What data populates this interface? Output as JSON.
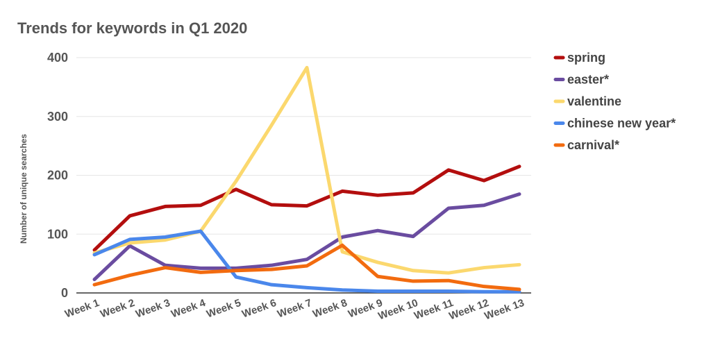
{
  "chart_data": {
    "type": "line",
    "title": "Trends for keywords in Q1 2020",
    "xlabel": "",
    "ylabel": "Number of unique searches",
    "ylim": [
      0,
      400
    ],
    "yticks": [
      0,
      100,
      200,
      300,
      400
    ],
    "grid": true,
    "legend_position": "right",
    "categories": [
      "Week 1",
      "Week 2",
      "Week 3",
      "Week 4",
      "Week 5",
      "Week 6",
      "Week 7",
      "Week 8",
      "Week 9",
      "Week 10",
      "Week 11",
      "Week 12",
      "Week 13"
    ],
    "series": [
      {
        "name": "spring",
        "color": "#b30e0e",
        "values": [
          73,
          131,
          147,
          149,
          176,
          150,
          148,
          173,
          166,
          170,
          209,
          191,
          215
        ]
      },
      {
        "name": "easter*",
        "color": "#6a4ca0",
        "values": [
          23,
          80,
          47,
          42,
          42,
          47,
          57,
          95,
          106,
          96,
          144,
          149,
          168
        ]
      },
      {
        "name": "valentine",
        "color": "#fbd86e",
        "values": [
          68,
          85,
          90,
          105,
          190,
          285,
          383,
          70,
          52,
          38,
          34,
          43,
          48
        ]
      },
      {
        "name": "chinese new year*",
        "color": "#4a87eb",
        "values": [
          65,
          91,
          95,
          105,
          27,
          14,
          9,
          5,
          3,
          3,
          3,
          2,
          2
        ]
      },
      {
        "name": "carnival*",
        "color": "#f26b0f",
        "values": [
          14,
          30,
          43,
          35,
          38,
          40,
          46,
          81,
          28,
          20,
          21,
          11,
          6
        ]
      }
    ]
  }
}
